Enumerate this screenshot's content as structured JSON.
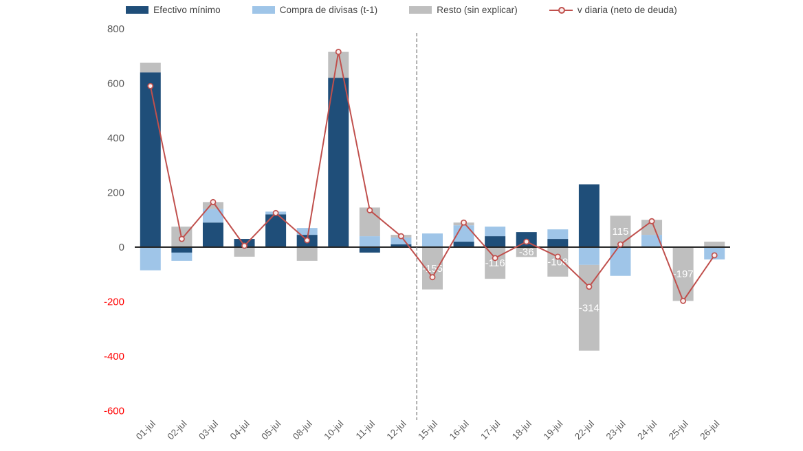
{
  "page": {
    "background": "#ffffff"
  },
  "legend": {
    "items_note": "legend labels bound from chart_data.series names"
  },
  "chart_data": {
    "type": "bar",
    "subtype": "stacked-bar-with-line",
    "title": "",
    "xlabel": "",
    "ylabel": "",
    "ylim": [
      -600,
      800
    ],
    "yticks": [
      800,
      600,
      400,
      200,
      0,
      -200,
      -400,
      -600
    ],
    "grid": false,
    "legend_position": "top",
    "separator_after_index": 8,
    "categories": [
      "01-jul",
      "02-jul",
      "03-jul",
      "04-jul",
      "05-jul",
      "08-jul",
      "10-jul",
      "11-jul",
      "12-jul",
      "15-jul",
      "16-jul",
      "17-jul",
      "18-jul",
      "19-jul",
      "22-jul",
      "23-jul",
      "24-jul",
      "25-jul",
      "26-jul"
    ],
    "series": [
      {
        "name": "Efectivo mínimo",
        "type": "bar",
        "color": "#1f4e79",
        "values": [
          640,
          -20,
          90,
          30,
          120,
          45,
          620,
          -20,
          10,
          0,
          20,
          40,
          55,
          30,
          230,
          0,
          0,
          0,
          0
        ]
      },
      {
        "name": "Compra de divisas (t-1)",
        "type": "bar",
        "color": "#9fc5e8",
        "values": [
          -85,
          -30,
          50,
          0,
          10,
          25,
          0,
          40,
          25,
          50,
          60,
          35,
          0,
          35,
          -65,
          -105,
          45,
          0,
          -45
        ]
      },
      {
        "name": "Resto (sin explicar)",
        "type": "bar",
        "color": "#bfbfbf",
        "values": [
          35,
          75,
          25,
          -35,
          0,
          -50,
          95,
          105,
          10,
          -155,
          10,
          -116,
          -36,
          -108,
          -314,
          115,
          55,
          -197,
          20
        ],
        "data_labels": [
          null,
          null,
          null,
          null,
          null,
          null,
          null,
          null,
          null,
          "-155",
          null,
          "-116",
          "-36",
          "-108",
          "-314",
          "115",
          null,
          "-197",
          null
        ]
      },
      {
        "name": "v diaria (neto de deuda)",
        "type": "line",
        "color": "#c0504d",
        "values": [
          590,
          30,
          165,
          5,
          125,
          25,
          715,
          135,
          40,
          -110,
          90,
          -40,
          20,
          -35,
          -145,
          10,
          95,
          -197,
          -30
        ]
      }
    ],
    "colors": {
      "axis_line": "#262626",
      "tick_positive": "#595959",
      "tick_negative": "#ff0000",
      "x_labels": "#595959",
      "separator": "#7f7f7f",
      "bar_label_text": "#ffffff"
    }
  }
}
